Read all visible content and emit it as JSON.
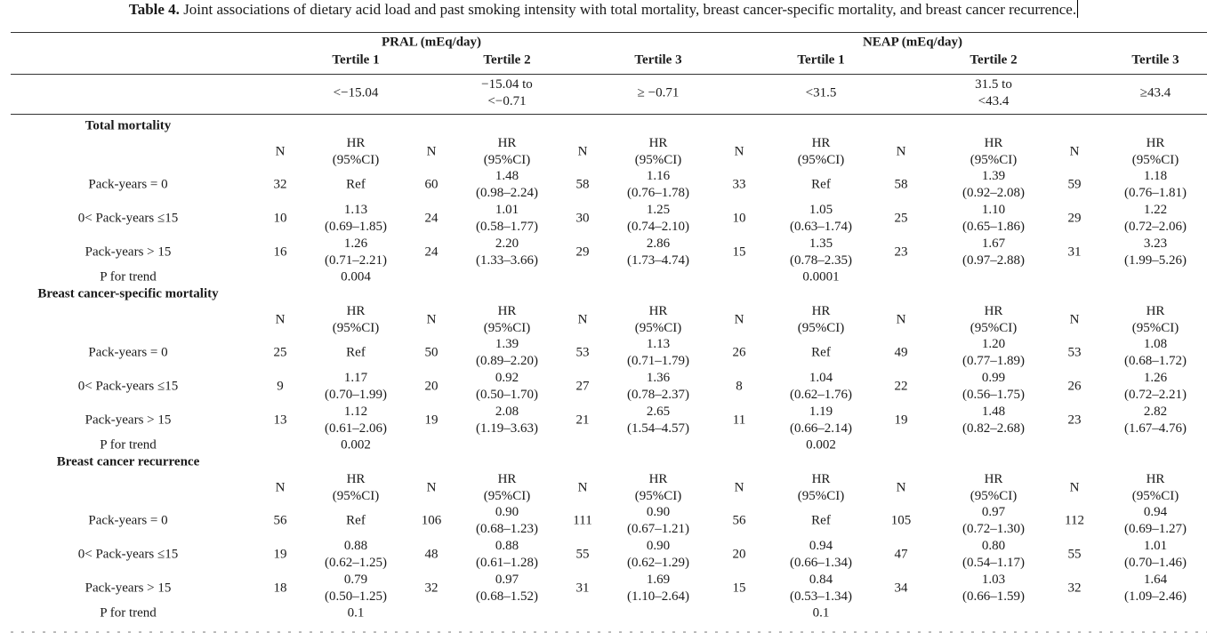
{
  "caption": {
    "label": "Table 4.",
    "text": "Joint associations of dietary acid load and past smoking intensity with total mortality, breast cancer-specific mortality, and breast cancer recurrence."
  },
  "header": {
    "groups": [
      "PRAL (mEq/day)",
      "NEAP (mEq/day)"
    ],
    "tertiles": [
      "Tertile 1",
      "Tertile 2",
      "Tertile 3",
      "Tertile 1",
      "Tertile 2",
      "Tertile 3"
    ],
    "ranges": [
      [
        "<−15.04"
      ],
      [
        "−15.04 to",
        "<−0.71"
      ],
      [
        "≥ −0.71"
      ],
      [
        "<31.5"
      ],
      [
        "31.5 to",
        "<43.4"
      ],
      [
        "≥43.4"
      ]
    ]
  },
  "col_labels": {
    "n": "N",
    "hr": [
      "HR",
      "(95%CI)"
    ]
  },
  "sections": [
    {
      "title": "Total mortality",
      "rows": [
        {
          "label": "Pack-years = 0",
          "cells": [
            [
              "32",
              [
                "Ref"
              ]
            ],
            [
              "60",
              [
                "1.48",
                "(0.98–2.24)"
              ]
            ],
            [
              "58",
              [
                "1.16",
                "(0.76–1.78)"
              ]
            ],
            [
              "33",
              [
                "Ref"
              ]
            ],
            [
              "58",
              [
                "1.39",
                "(0.92–2.08)"
              ]
            ],
            [
              "59",
              [
                "1.18",
                "(0.76–1.81)"
              ]
            ]
          ]
        },
        {
          "label": "0< Pack-years ≤15",
          "cells": [
            [
              "10",
              [
                "1.13",
                "(0.69–1.85)"
              ]
            ],
            [
              "24",
              [
                "1.01",
                "(0.58–1.77)"
              ]
            ],
            [
              "30",
              [
                "1.25",
                "(0.74–2.10)"
              ]
            ],
            [
              "10",
              [
                "1.05",
                "(0.63–1.74)"
              ]
            ],
            [
              "25",
              [
                "1.10",
                "(0.65–1.86)"
              ]
            ],
            [
              "29",
              [
                "1.22",
                "(0.72–2.06)"
              ]
            ]
          ]
        },
        {
          "label": "Pack-years > 15",
          "cells": [
            [
              "16",
              [
                "1.26",
                "(0.71–2.21)"
              ]
            ],
            [
              "24",
              [
                "2.20",
                "(1.33–3.66)"
              ]
            ],
            [
              "29",
              [
                "2.86",
                "(1.73–4.74)"
              ]
            ],
            [
              "15",
              [
                "1.35",
                "(0.78–2.35)"
              ]
            ],
            [
              "23",
              [
                "1.67",
                "(0.97–2.88)"
              ]
            ],
            [
              "31",
              [
                "3.23",
                "(1.99–5.26)"
              ]
            ]
          ]
        }
      ],
      "trend": {
        "label": "P for trend",
        "pral": "0.004",
        "neap": "0.0001"
      }
    },
    {
      "title": "Breast cancer-specific mortality",
      "rows": [
        {
          "label": "Pack-years = 0",
          "cells": [
            [
              "25",
              [
                "Ref"
              ]
            ],
            [
              "50",
              [
                "1.39",
                "(0.89–2.20)"
              ]
            ],
            [
              "53",
              [
                "1.13",
                "(0.71–1.79)"
              ]
            ],
            [
              "26",
              [
                "Ref"
              ]
            ],
            [
              "49",
              [
                "1.20",
                "(0.77–1.89)"
              ]
            ],
            [
              "53",
              [
                "1.08",
                "(0.68–1.72)"
              ]
            ]
          ]
        },
        {
          "label": "0< Pack-years ≤15",
          "cells": [
            [
              "9",
              [
                "1.17",
                "(0.70–1.99)"
              ]
            ],
            [
              "20",
              [
                "0.92",
                "(0.50–1.70)"
              ]
            ],
            [
              "27",
              [
                "1.36",
                "(0.78–2.37)"
              ]
            ],
            [
              "8",
              [
                "1.04",
                "(0.62–1.76)"
              ]
            ],
            [
              "22",
              [
                "0.99",
                "(0.56–1.75)"
              ]
            ],
            [
              "26",
              [
                "1.26",
                "(0.72–2.21)"
              ]
            ]
          ]
        },
        {
          "label": "Pack-years > 15",
          "cells": [
            [
              "13",
              [
                "1.12",
                "(0.61–2.06)"
              ]
            ],
            [
              "19",
              [
                "2.08",
                "(1.19–3.63)"
              ]
            ],
            [
              "21",
              [
                "2.65",
                "(1.54–4.57)"
              ]
            ],
            [
              "11",
              [
                "1.19",
                "(0.66–2.14)"
              ]
            ],
            [
              "19",
              [
                "1.48",
                "(0.82–2.68)"
              ]
            ],
            [
              "23",
              [
                "2.82",
                "(1.67–4.76)"
              ]
            ]
          ]
        }
      ],
      "trend": {
        "label": "P for trend",
        "pral": "0.002",
        "neap": "0.002"
      }
    },
    {
      "title": "Breast cancer recurrence",
      "rows": [
        {
          "label": "Pack-years = 0",
          "cells": [
            [
              "56",
              [
                "Ref"
              ]
            ],
            [
              "106",
              [
                "0.90",
                "(0.68–1.23)"
              ]
            ],
            [
              "111",
              [
                "0.90",
                "(0.67–1.21)"
              ]
            ],
            [
              "56",
              [
                "Ref"
              ]
            ],
            [
              "105",
              [
                "0.97",
                "(0.72–1.30)"
              ]
            ],
            [
              "112",
              [
                "0.94",
                "(0.69–1.27)"
              ]
            ]
          ]
        },
        {
          "label": "0< Pack-years ≤15",
          "cells": [
            [
              "19",
              [
                "0.88",
                "(0.62–1.25)"
              ]
            ],
            [
              "48",
              [
                "0.88",
                "(0.61–1.28)"
              ]
            ],
            [
              "55",
              [
                "0.90",
                "(0.62–1.29)"
              ]
            ],
            [
              "20",
              [
                "0.94",
                "(0.66–1.34)"
              ]
            ],
            [
              "47",
              [
                "0.80",
                "(0.54–1.17)"
              ]
            ],
            [
              "55",
              [
                "1.01",
                "(0.70–1.46)"
              ]
            ]
          ]
        },
        {
          "label": "Pack-years > 15",
          "cells": [
            [
              "18",
              [
                "0.79",
                "(0.50–1.25)"
              ]
            ],
            [
              "32",
              [
                "0.97",
                "(0.68–1.52)"
              ]
            ],
            [
              "31",
              [
                "1.69",
                "(1.10–2.64)"
              ]
            ],
            [
              "15",
              [
                "0.84",
                "(0.53–1.34)"
              ]
            ],
            [
              "34",
              [
                "1.03",
                "(0.66–1.59)"
              ]
            ],
            [
              "32",
              [
                "1.64",
                "(1.09–2.46)"
              ]
            ]
          ]
        }
      ],
      "trend": {
        "label": "P for trend",
        "pral": "0.1",
        "neap": "0.1"
      }
    }
  ]
}
